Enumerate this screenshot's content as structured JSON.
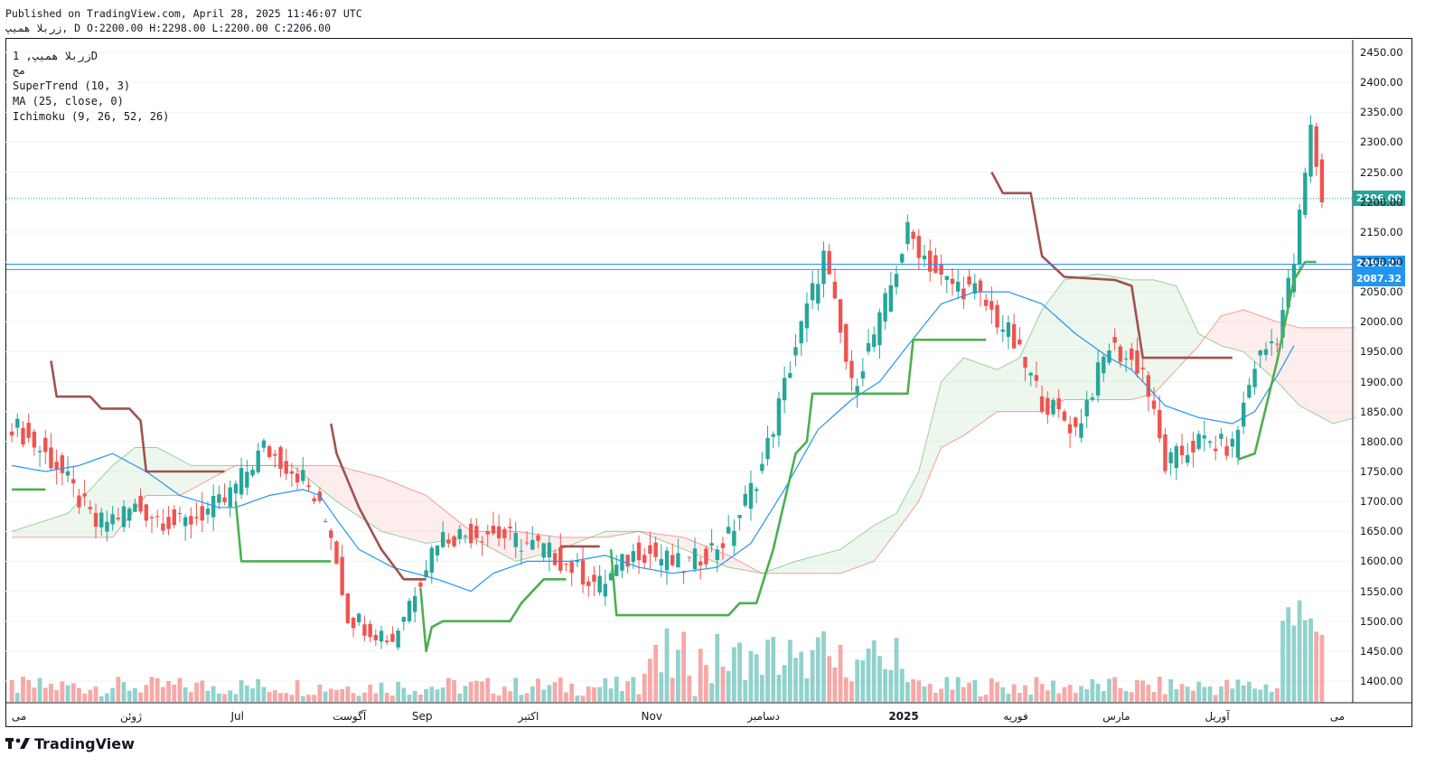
{
  "header": {
    "published": "Published on TradingView.com, April 28, 2025 11:46:07 UTC",
    "ohlc": "زربلا همیپ, D O:2200.00 H:2298.00 L:2200.00 C:2206.00"
  },
  "legend": {
    "symbol": "زربلا همیپ, 1D",
    "line2": "مج",
    "supertrend": "SuperTrend (10, 3)",
    "ma": "MA (25, close, 0)",
    "ichimoku": "Ichimoku (9, 26, 52, 26)"
  },
  "price_labels": {
    "last": "2206.00",
    "line1": "2096.21",
    "line2": "2087.32"
  },
  "colors": {
    "up": "#26a69a",
    "down": "#ef5350",
    "supertrend_up": "#4caf50",
    "supertrend_down": "#a0524f",
    "ma": "#2196f3",
    "hline": "#2196f3",
    "last_price": "#26a69a"
  },
  "footer": {
    "brand": "TradingView"
  },
  "chart_data": {
    "type": "candlestick",
    "yaxis_ticks": [
      "2450.00",
      "2400.00",
      "2350.00",
      "2300.00",
      "2250.00",
      "2200.00",
      "2150.00",
      "2100.00",
      "2050.00",
      "2000.00",
      "1950.00",
      "1900.00",
      "1850.00",
      "1800.00",
      "1750.00",
      "1700.00",
      "1650.00",
      "1600.00",
      "1550.00",
      "1500.00",
      "1450.00",
      "1400.00"
    ],
    "ylim": [
      1360,
      2470
    ],
    "xaxis_labels": [
      {
        "text": "می",
        "idx": 0
      },
      {
        "text": "ژوئن",
        "idx": 20
      },
      {
        "text": "Jul",
        "idx": 39
      },
      {
        "text": "آگوست",
        "idx": 59
      },
      {
        "text": "Sep",
        "idx": 72
      },
      {
        "text": "اکتبر",
        "idx": 91
      },
      {
        "text": "Nov",
        "idx": 113
      },
      {
        "text": "دسامبر",
        "idx": 133
      },
      {
        "text": "2025",
        "idx": 158,
        "bold": true
      },
      {
        "text": "فوریه",
        "idx": 178
      },
      {
        "text": "مارس",
        "idx": 196
      },
      {
        "text": "آوریل",
        "idx": 214
      },
      {
        "text": "می",
        "idx": 237
      }
    ],
    "close_series_keypoints": [
      [
        0,
        1830
      ],
      [
        8,
        1760
      ],
      [
        15,
        1660
      ],
      [
        22,
        1690
      ],
      [
        30,
        1660
      ],
      [
        38,
        1700
      ],
      [
        45,
        1790
      ],
      [
        52,
        1740
      ],
      [
        57,
        1650
      ],
      [
        60,
        1510
      ],
      [
        68,
        1470
      ],
      [
        76,
        1640
      ],
      [
        85,
        1650
      ],
      [
        95,
        1620
      ],
      [
        105,
        1560
      ],
      [
        112,
        1620
      ],
      [
        120,
        1590
      ],
      [
        128,
        1640
      ],
      [
        134,
        1760
      ],
      [
        140,
        1960
      ],
      [
        145,
        2110
      ],
      [
        150,
        1890
      ],
      [
        155,
        2000
      ],
      [
        160,
        2150
      ],
      [
        166,
        2070
      ],
      [
        172,
        2050
      ],
      [
        178,
        1980
      ],
      [
        184,
        1870
      ],
      [
        190,
        1820
      ],
      [
        196,
        1960
      ],
      [
        202,
        1920
      ],
      [
        206,
        1760
      ],
      [
        212,
        1800
      ],
      [
        218,
        1790
      ],
      [
        222,
        1930
      ],
      [
        226,
        1980
      ],
      [
        229,
        2100
      ],
      [
        232,
        2320
      ],
      [
        234,
        2206
      ]
    ],
    "supertrend": {
      "down_keypoints": [
        [
          0,
          null
        ],
        [
          7,
          1935
        ],
        [
          8,
          1875
        ],
        [
          14,
          1875
        ],
        [
          16,
          1855
        ],
        [
          21,
          1855
        ],
        [
          23,
          1835
        ],
        [
          24,
          1750
        ],
        [
          38,
          1750
        ],
        [
          39,
          null
        ],
        [
          57,
          1830
        ],
        [
          58,
          1780
        ],
        [
          62,
          1690
        ],
        [
          66,
          1620
        ],
        [
          70,
          1570
        ],
        [
          74,
          1570
        ],
        [
          75,
          null
        ],
        [
          98,
          1625
        ],
        [
          105,
          1625
        ],
        [
          106,
          null
        ],
        [
          175,
          2250
        ],
        [
          177,
          2215
        ],
        [
          182,
          2215
        ],
        [
          184,
          2110
        ],
        [
          188,
          2075
        ],
        [
          197,
          2070
        ],
        [
          200,
          2060
        ],
        [
          202,
          1940
        ],
        [
          218,
          1940
        ]
      ],
      "up_keypoints": [
        [
          0,
          1720
        ],
        [
          6,
          1720
        ],
        [
          7,
          null
        ],
        [
          40,
          1700
        ],
        [
          41,
          1600
        ],
        [
          57,
          1600
        ],
        [
          58,
          null
        ],
        [
          73,
          1555
        ],
        [
          74,
          1450
        ],
        [
          75,
          1490
        ],
        [
          77,
          1500
        ],
        [
          89,
          1500
        ],
        [
          91,
          1530
        ],
        [
          95,
          1570
        ],
        [
          99,
          1570
        ],
        [
          100,
          null
        ],
        [
          107,
          1620
        ],
        [
          108,
          1510
        ],
        [
          128,
          1510
        ],
        [
          130,
          1530
        ],
        [
          133,
          1530
        ],
        [
          136,
          1620
        ],
        [
          140,
          1780
        ],
        [
          142,
          1800
        ],
        [
          143,
          1880
        ],
        [
          160,
          1880
        ],
        [
          161,
          1970
        ],
        [
          174,
          1970
        ],
        [
          175,
          null
        ],
        [
          219,
          1770
        ],
        [
          222,
          1780
        ],
        [
          226,
          1935
        ],
        [
          229,
          2070
        ],
        [
          231,
          2100
        ],
        [
          233,
          2100
        ]
      ]
    },
    "ma_keypoints": [
      [
        0,
        1760
      ],
      [
        6,
        1750
      ],
      [
        12,
        1760
      ],
      [
        18,
        1780
      ],
      [
        24,
        1750
      ],
      [
        30,
        1710
      ],
      [
        37,
        1690
      ],
      [
        40,
        1690
      ],
      [
        46,
        1710
      ],
      [
        52,
        1720
      ],
      [
        55,
        1710
      ],
      [
        58,
        1670
      ],
      [
        62,
        1620
      ],
      [
        68,
        1590
      ],
      [
        76,
        1570
      ],
      [
        82,
        1550
      ],
      [
        86,
        1580
      ],
      [
        92,
        1600
      ],
      [
        100,
        1600
      ],
      [
        106,
        1610
      ],
      [
        112,
        1590
      ],
      [
        118,
        1580
      ],
      [
        126,
        1590
      ],
      [
        132,
        1630
      ],
      [
        138,
        1720
      ],
      [
        144,
        1820
      ],
      [
        150,
        1870
      ],
      [
        155,
        1900
      ],
      [
        160,
        1960
      ],
      [
        166,
        2030
      ],
      [
        172,
        2050
      ],
      [
        178,
        2050
      ],
      [
        184,
        2030
      ],
      [
        190,
        1980
      ],
      [
        196,
        1940
      ],
      [
        200,
        1920
      ],
      [
        206,
        1860
      ],
      [
        212,
        1840
      ],
      [
        218,
        1830
      ],
      [
        222,
        1850
      ],
      [
        226,
        1910
      ],
      [
        229,
        1960
      ]
    ],
    "ichimoku_cloud": {
      "span_a": [
        [
          0,
          1650
        ],
        [
          10,
          1680
        ],
        [
          18,
          1760
        ],
        [
          22,
          1790
        ],
        [
          26,
          1790
        ],
        [
          32,
          1760
        ],
        [
          40,
          1760
        ],
        [
          50,
          1760
        ],
        [
          58,
          1700
        ],
        [
          66,
          1650
        ],
        [
          74,
          1630
        ],
        [
          82,
          1640
        ],
        [
          90,
          1600
        ],
        [
          98,
          1620
        ],
        [
          106,
          1650
        ],
        [
          112,
          1650
        ],
        [
          120,
          1620
        ],
        [
          128,
          1590
        ],
        [
          134,
          1580
        ],
        [
          140,
          1600
        ],
        [
          148,
          1620
        ],
        [
          154,
          1660
        ],
        [
          158,
          1680
        ],
        [
          162,
          1750
        ],
        [
          166,
          1900
        ],
        [
          170,
          1940
        ],
        [
          176,
          1920
        ],
        [
          180,
          1940
        ],
        [
          184,
          2020
        ],
        [
          188,
          2070
        ],
        [
          194,
          2080
        ],
        [
          200,
          2070
        ],
        [
          204,
          2070
        ],
        [
          208,
          2060
        ],
        [
          212,
          1980
        ],
        [
          216,
          1960
        ],
        [
          220,
          1950
        ],
        [
          226,
          1900
        ],
        [
          230,
          1860
        ],
        [
          236,
          1830
        ],
        [
          240,
          1840
        ]
      ],
      "span_b": [
        [
          0,
          1640
        ],
        [
          10,
          1640
        ],
        [
          18,
          1640
        ],
        [
          24,
          1710
        ],
        [
          30,
          1710
        ],
        [
          40,
          1760
        ],
        [
          50,
          1760
        ],
        [
          58,
          1760
        ],
        [
          66,
          1740
        ],
        [
          74,
          1710
        ],
        [
          82,
          1650
        ],
        [
          90,
          1650
        ],
        [
          98,
          1640
        ],
        [
          106,
          1640
        ],
        [
          112,
          1650
        ],
        [
          120,
          1640
        ],
        [
          128,
          1610
        ],
        [
          134,
          1580
        ],
        [
          140,
          1580
        ],
        [
          148,
          1580
        ],
        [
          154,
          1600
        ],
        [
          158,
          1650
        ],
        [
          162,
          1700
        ],
        [
          166,
          1790
        ],
        [
          170,
          1810
        ],
        [
          176,
          1850
        ],
        [
          180,
          1850
        ],
        [
          184,
          1850
        ],
        [
          188,
          1870
        ],
        [
          194,
          1870
        ],
        [
          200,
          1870
        ],
        [
          204,
          1880
        ],
        [
          208,
          1920
        ],
        [
          212,
          1960
        ],
        [
          216,
          2010
        ],
        [
          220,
          2020
        ],
        [
          226,
          2000
        ],
        [
          230,
          1990
        ],
        [
          236,
          1990
        ],
        [
          240,
          1990
        ]
      ]
    },
    "hlines": [
      2096.21,
      2087.32
    ],
    "last_price": 2206.0
  }
}
